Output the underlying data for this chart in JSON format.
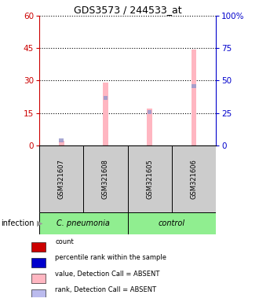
{
  "title": "GDS3573 / 244533_at",
  "samples": [
    "GSM321607",
    "GSM321608",
    "GSM321605",
    "GSM321606"
  ],
  "group_spans": [
    {
      "label": "C. pneumonia",
      "start": 0,
      "end": 1,
      "color": "#90EE90"
    },
    {
      "label": "control",
      "start": 2,
      "end": 3,
      "color": "#90EE90"
    }
  ],
  "pink_bar_values": [
    2.0,
    29.0,
    17.0,
    44.5
  ],
  "blue_rank_values": [
    2.2,
    22.0,
    15.5,
    27.5
  ],
  "left_ylim": [
    0,
    60
  ],
  "right_ylim": [
    0,
    100
  ],
  "left_yticks": [
    0,
    15,
    30,
    45,
    60
  ],
  "right_yticks": [
    0,
    25,
    50,
    75,
    100
  ],
  "right_yticklabels": [
    "0",
    "25",
    "50",
    "75",
    "100%"
  ],
  "left_ycolor": "#cc0000",
  "right_ycolor": "#0000cc",
  "pink_color": "#FFB6C1",
  "blue_rank_color": "#9999CC",
  "bar_width": 0.12,
  "rank_bar_width": 0.1,
  "legend_items": [
    {
      "color": "#cc0000",
      "label": "count"
    },
    {
      "color": "#0000cc",
      "label": "percentile rank within the sample"
    },
    {
      "color": "#FFB6C1",
      "label": "value, Detection Call = ABSENT"
    },
    {
      "color": "#BBBBEE",
      "label": "rank, Detection Call = ABSENT"
    }
  ],
  "infection_label": "infection",
  "sample_box_color": "#CCCCCC",
  "grid_color": "black",
  "grid_style": ":"
}
